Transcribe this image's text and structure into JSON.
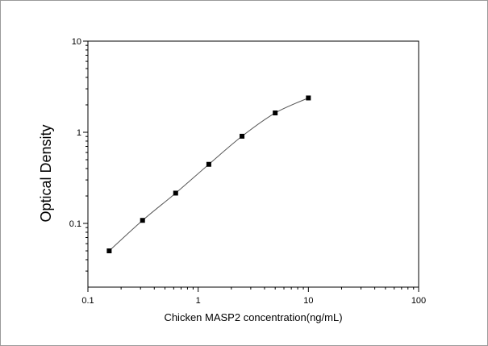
{
  "chart_data": {
    "type": "scatter",
    "xlabel": "Chicken MASP2 concentration(ng/mL)",
    "ylabel": "Optical Density",
    "x_scale": "log",
    "y_scale": "log",
    "xlim": [
      0.1,
      100
    ],
    "ylim": [
      0.02,
      10
    ],
    "x_ticks": [
      {
        "value": 0.1,
        "label": "0.1"
      },
      {
        "value": 1,
        "label": "1"
      },
      {
        "value": 10,
        "label": "10"
      },
      {
        "value": 100,
        "label": "100"
      }
    ],
    "y_ticks": [
      {
        "value": 0.1,
        "label": "0.1"
      },
      {
        "value": 1,
        "label": "1"
      },
      {
        "value": 10,
        "label": "10"
      }
    ],
    "series": [
      {
        "x": [
          0.156,
          0.313,
          0.625,
          1.25,
          2.5,
          5,
          10
        ],
        "y": [
          0.05,
          0.108,
          0.215,
          0.445,
          0.905,
          1.63,
          2.38
        ],
        "marker": "square",
        "fit_line": true
      }
    ],
    "grid": false,
    "legend": "none",
    "colors": {
      "marker": "#000000",
      "line": "#555555",
      "axis": "#000000"
    }
  }
}
